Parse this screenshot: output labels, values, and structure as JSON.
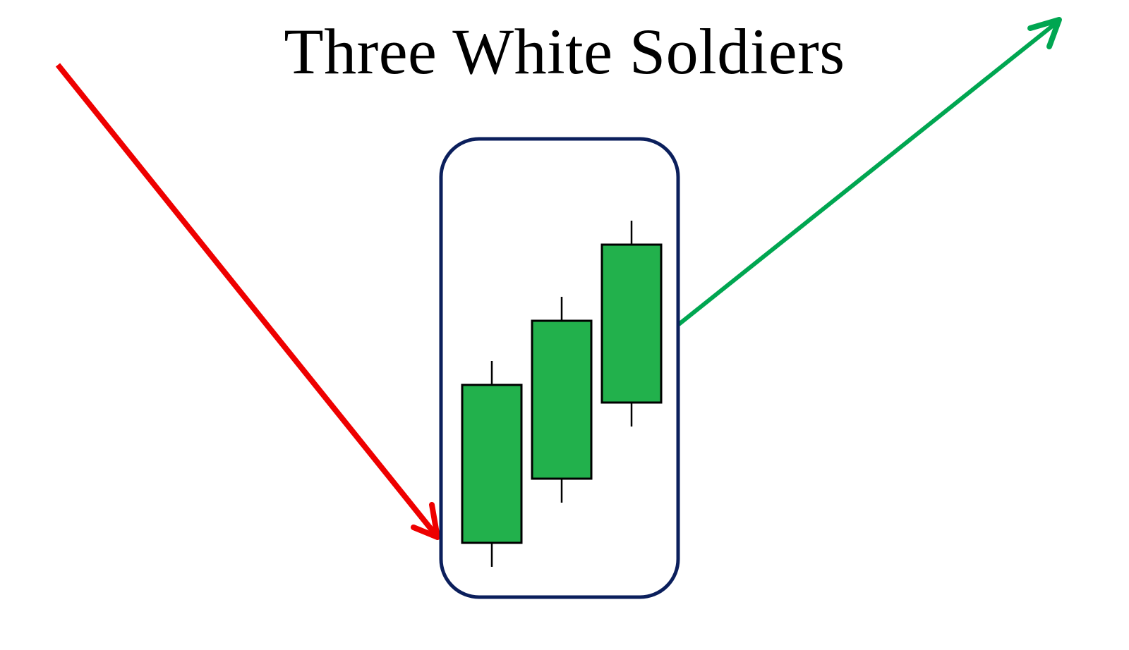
{
  "title": "Three White Soldiers",
  "colors": {
    "downtrend_arrow": "#ee0000",
    "uptrend_arrow": "#00a651",
    "candle_fill": "#22b14c",
    "candle_outline": "#000000",
    "frame": "#0b1f5c"
  },
  "elements": {
    "downtrend_arrow": "red arrow pointing down",
    "uptrend_arrow": "green arrow pointing up",
    "pattern_frame": "rounded rectangle",
    "candles": [
      {
        "name": "candle-1",
        "type": "bullish"
      },
      {
        "name": "candle-2",
        "type": "bullish"
      },
      {
        "name": "candle-3",
        "type": "bullish"
      }
    ]
  }
}
